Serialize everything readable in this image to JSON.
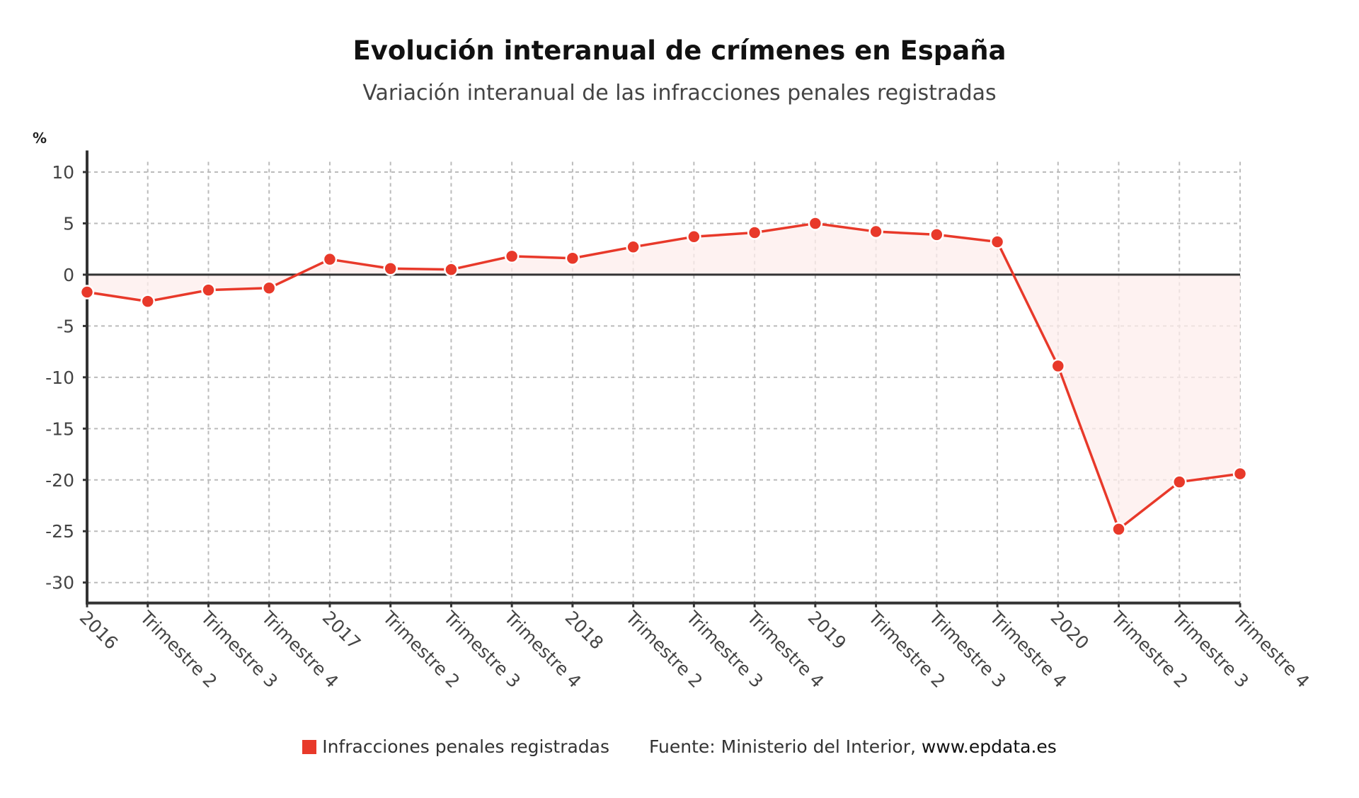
{
  "header": {
    "title": "Evolución interanual de crímenes en España",
    "subtitle": "Variación interanual de las infracciones penales registradas"
  },
  "legend": {
    "series_label": "Infracciones penales registradas",
    "source_prefix": "Fuente: Ministerio del Interior,",
    "source_url": "www.epdata.es"
  },
  "colors": {
    "series": "#e8392a",
    "area": "#fdeeec",
    "axis": "#333333",
    "grid": "#bbbbbb"
  },
  "chart_data": {
    "type": "line",
    "title": "Evolución interanual de crímenes en España",
    "subtitle": "Variación interanual de las infracciones penales registradas",
    "xlabel": "",
    "ylabel": "%",
    "ylim": [
      -32,
      11
    ],
    "yticks": [
      10,
      5,
      0,
      -5,
      -10,
      -15,
      -20,
      -25,
      -30
    ],
    "grid": true,
    "legend_position": "bottom",
    "categories": [
      "2016",
      "Trimestre 2",
      "Trimestre 3",
      "Trimestre 4",
      "2017",
      "Trimestre 2",
      "Trimestre 3",
      "Trimestre 4",
      "2018",
      "Trimestre 2",
      "Trimestre 3",
      "Trimestre 4",
      "2019",
      "Trimestre 2",
      "Trimestre 3",
      "Trimestre 4",
      "2020",
      "Trimestre 2",
      "Trimestre 3",
      "Trimestre 4"
    ],
    "series": [
      {
        "name": "Infracciones penales registradas",
        "values": [
          -1.7,
          -2.6,
          -1.5,
          -1.3,
          1.5,
          0.6,
          0.5,
          1.8,
          1.6,
          2.7,
          3.7,
          4.1,
          5.0,
          4.2,
          3.9,
          3.2,
          -8.9,
          -24.8,
          -20.2,
          -19.4
        ]
      }
    ],
    "source": "Fuente: Ministerio del Interior, www.epdata.es"
  }
}
